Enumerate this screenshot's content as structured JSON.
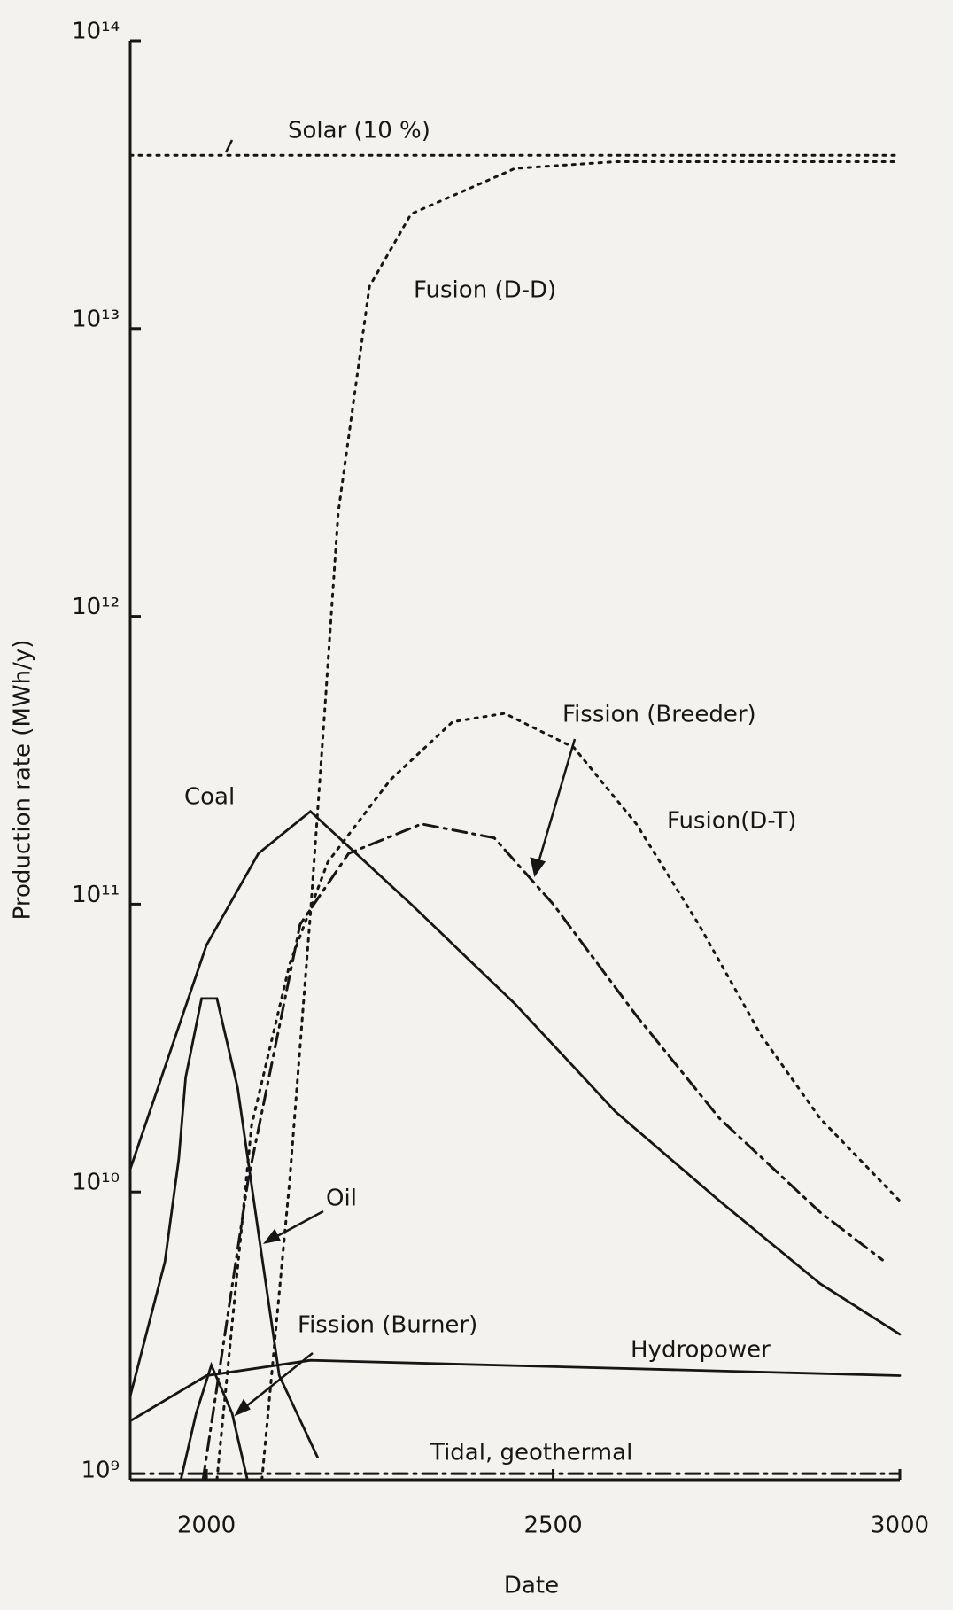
{
  "chart_data": {
    "type": "line",
    "log_y": true,
    "color": "#161616",
    "xlabel": "Date",
    "ylabel": "Production rate (MWh/y)",
    "xlim": [
      1890,
      3000
    ],
    "xticks": [
      2000,
      2500,
      3000
    ],
    "ylim": [
      1000000000.0,
      100000000000000.0
    ],
    "yticks": [
      {
        "value": 1000000000.0,
        "label": "10⁹"
      },
      {
        "value": 10000000000.0,
        "label": "10¹⁰"
      },
      {
        "value": 100000000000.0,
        "label": "10¹¹"
      },
      {
        "value": 1000000000000.0,
        "label": "10¹²"
      },
      {
        "value": 10000000000000.0,
        "label": "10¹³"
      },
      {
        "value": 100000000000000.0,
        "label": "10¹⁴"
      }
    ],
    "series": [
      {
        "name": "Solar (10 %)",
        "style": "dotted",
        "x": [
          1890,
          3000
        ],
        "values": [
          40000000000000.0,
          40000000000000.0
        ]
      },
      {
        "name": "Fusion (D-D)",
        "style": "dotted",
        "x": [
          2080,
          2120,
          2150,
          2170,
          2190,
          2235,
          2295,
          2445,
          2590,
          3000
        ],
        "values": [
          1000000000.0,
          11000000000.0,
          93000000000.0,
          450000000000.0,
          2300000000000.0,
          14000000000000.0,
          25000000000000.0,
          36000000000000.0,
          38000000000000.0,
          38000000000000.0
        ]
      },
      {
        "name": "Fission (Breeder)",
        "style": "dashdot",
        "x": [
          1995,
          2060,
          2135,
          2205,
          2310,
          2415,
          2500,
          2620,
          2740,
          2885,
          2975
        ],
        "values": [
          1000000000.0,
          11000000000.0,
          85000000000.0,
          150000000000.0,
          190000000000.0,
          170000000000.0,
          100000000000.0,
          41000000000.0,
          18000000000.0,
          8500000000.0,
          5800000000.0
        ]
      },
      {
        "name": "Fusion(D-T)",
        "style": "dotted",
        "x": [
          2015,
          2065,
          2120,
          2175,
          2265,
          2355,
          2430,
          2530,
          2620,
          2710,
          2800,
          2885,
          3000
        ],
        "values": [
          1000000000.0,
          17000000000.0,
          62000000000.0,
          140000000000.0,
          270000000000.0,
          430000000000.0,
          460000000000.0,
          350000000000.0,
          190000000000.0,
          85000000000.0,
          35000000000.0,
          18000000000.0,
          9300000000.0
        ]
      },
      {
        "name": "Coal",
        "style": "solid",
        "x": [
          1890,
          2000,
          2075,
          2150,
          2295,
          2445,
          2590,
          2740,
          2885,
          3000
        ],
        "values": [
          12000000000.0,
          72000000000.0,
          150000000000.0,
          210000000000.0,
          100000000000.0,
          45000000000.0,
          19000000000.0,
          9300000000.0,
          4800000000.0,
          3200000000.0
        ]
      },
      {
        "name": "Oil",
        "style": "solid",
        "x": [
          1890,
          1940,
          1960,
          1970,
          1993,
          2015,
          2045,
          2075,
          2105,
          2160
        ],
        "values": [
          1950000000.0,
          5700000000.0,
          13000000000.0,
          25000000000.0,
          47000000000.0,
          47000000000.0,
          23000000000.0,
          7200000000.0,
          2300000000.0,
          1200000000.0
        ]
      },
      {
        "name": "Fission (Burner)",
        "style": "solid",
        "x": [
          1963,
          1985,
          2007,
          2037,
          2059
        ],
        "values": [
          1000000000.0,
          1700000000.0,
          2500000000.0,
          1700000000.0,
          1000000000.0
        ]
      },
      {
        "name": "Hydropower",
        "style": "solid",
        "x": [
          1890,
          2000,
          2150,
          3000
        ],
        "values": [
          1600000000.0,
          2300000000.0,
          2600000000.0,
          2300000000.0
        ]
      },
      {
        "name": "Tidal, geothermal",
        "style": "dashdot",
        "x": [
          1890,
          3000
        ],
        "values": [
          1050000000.0,
          1050000000.0
        ]
      }
    ]
  }
}
